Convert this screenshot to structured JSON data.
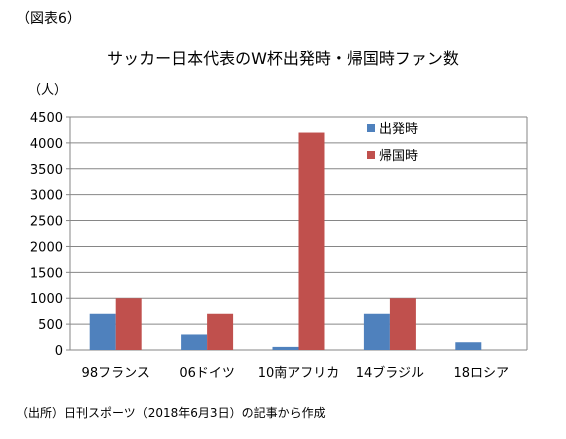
{
  "figure_label": "（図表6）",
  "source_note": "（出所）日刊スポーツ（2018年6月3日）の記事から作成",
  "colors": {
    "series_1": "#4F81BD",
    "series_2": "#C0504D",
    "grid": "#868686",
    "axis": "#868686"
  },
  "chart_data": {
    "type": "bar",
    "title": "サッカー日本代表のW杯出発時・帰国時ファン数",
    "ylabel": "（人）",
    "xlabel": "",
    "ylim": [
      0,
      4500
    ],
    "y_ticks": [
      0,
      500,
      1000,
      1500,
      2000,
      2500,
      3000,
      3500,
      4000,
      4500
    ],
    "grid": true,
    "legend_position": "top-right inside plot",
    "categories": [
      "98フランス",
      "06ドイツ",
      "10南アフリカ",
      "14ブラジル",
      "18ロシア"
    ],
    "series": [
      {
        "name": "出発時",
        "values": [
          700,
          300,
          60,
          700,
          150
        ]
      },
      {
        "name": "帰国時",
        "values": [
          1000,
          700,
          4200,
          1000,
          null
        ]
      }
    ]
  }
}
